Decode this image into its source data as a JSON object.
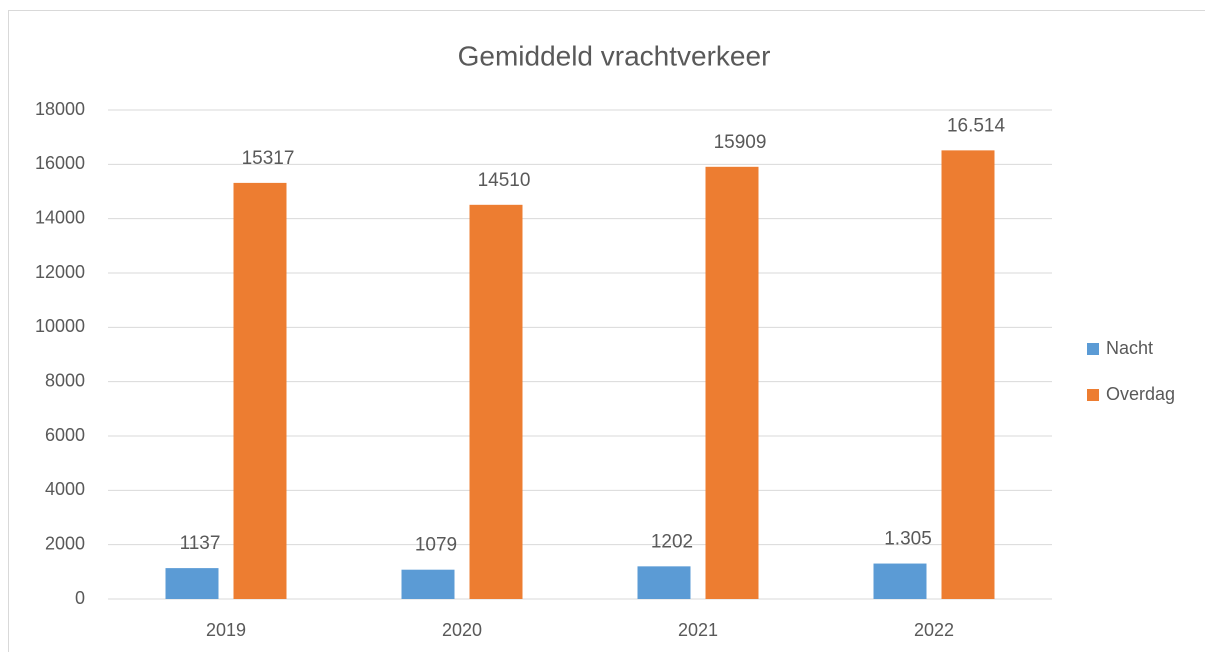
{
  "chart_data": {
    "type": "bar",
    "title": "Gemiddeld vrachtverkeer",
    "categories": [
      "2019",
      "2020",
      "2021",
      "2022"
    ],
    "series": [
      {
        "name": "Nacht",
        "color": "#5b9bd5",
        "values": [
          1137,
          1079,
          1202,
          1305
        ],
        "value_labels": [
          "1137",
          "1079",
          "1202",
          "1.305"
        ]
      },
      {
        "name": "Overdag",
        "color": "#ed7d31",
        "values": [
          15317,
          14510,
          15909,
          16514
        ],
        "value_labels": [
          "15317",
          "14510",
          "15909",
          "16.514"
        ]
      }
    ],
    "ylim": [
      0,
      18000
    ],
    "yticks": [
      0,
      2000,
      4000,
      6000,
      8000,
      10000,
      12000,
      14000,
      16000,
      18000
    ],
    "grid": true,
    "legend": "right"
  }
}
